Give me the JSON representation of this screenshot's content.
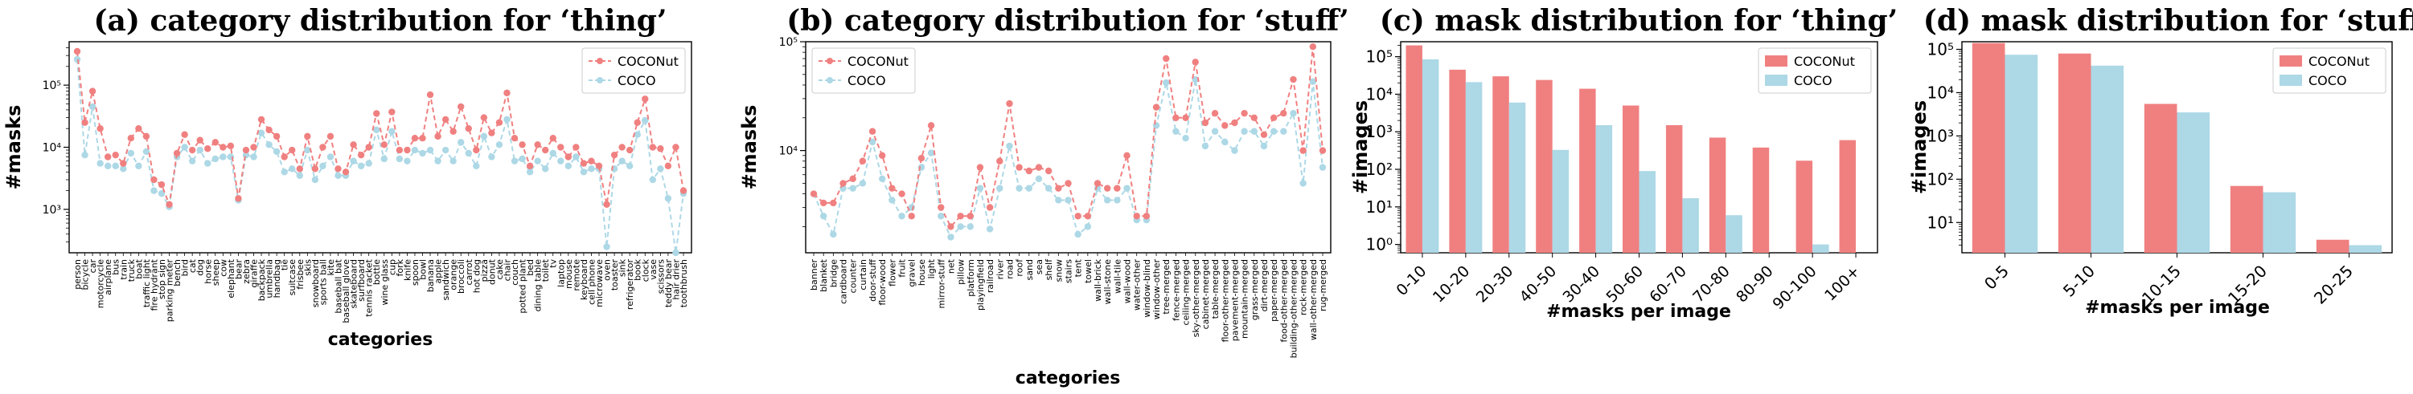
{
  "colors": {
    "coconut": "#f08080",
    "coco": "#add8e6"
  },
  "chart_data": [
    {
      "type": "line",
      "title": "(a) category distribution for ‘thing’",
      "xlabel": "categories",
      "ylabel": "#masks",
      "yscale": "log",
      "ylim": [
        200,
        500000
      ],
      "ytick_labels": [
        "10³",
        "10⁴",
        "10⁵"
      ],
      "ytick_values": [
        1000,
        10000,
        100000
      ],
      "legend_position": "top-right",
      "grid": false,
      "categories": [
        "person",
        "bicycle",
        "car",
        "motorcycle",
        "airplane",
        "bus",
        "train",
        "truck",
        "boat",
        "traffic light",
        "fire hydrant",
        "stop sign",
        "parking meter",
        "bench",
        "bird",
        "cat",
        "dog",
        "horse",
        "sheep",
        "cow",
        "elephant",
        "bear",
        "zebra",
        "giraffe",
        "backpack",
        "umbrella",
        "handbag",
        "tie",
        "suitcase",
        "frisbee",
        "skis",
        "snowboard",
        "sports ball",
        "kite",
        "baseball bat",
        "baseball glove",
        "skateboard",
        "surfboard",
        "tennis racket",
        "bottle",
        "wine glass",
        "cup",
        "fork",
        "knife",
        "spoon",
        "bowl",
        "banana",
        "apple",
        "sandwich",
        "orange",
        "broccoli",
        "carrot",
        "hot dog",
        "pizza",
        "donut",
        "cake",
        "chair",
        "couch",
        "potted plant",
        "bed",
        "dining table",
        "toilet",
        "tv",
        "laptop",
        "mouse",
        "remote",
        "keyboard",
        "cell phone",
        "microwave",
        "oven",
        "toaster",
        "sink",
        "refrigerator",
        "book",
        "clock",
        "vase",
        "scissors",
        "teddy bear",
        "hair drier",
        "toothbrush"
      ],
      "series": [
        {
          "name": "COCONut",
          "values": [
            350000,
            25000,
            80000,
            20000,
            7000,
            7500,
            5500,
            14000,
            20000,
            15000,
            3000,
            2500,
            1200,
            8000,
            16000,
            9000,
            13000,
            9500,
            12000,
            10000,
            10500,
            1500,
            9000,
            10000,
            28000,
            19000,
            15000,
            7000,
            9000,
            4500,
            15000,
            4500,
            10000,
            15000,
            4500,
            4000,
            11000,
            7500,
            10000,
            35000,
            11000,
            37000,
            9000,
            9000,
            14000,
            14000,
            70000,
            15000,
            28000,
            18000,
            45000,
            20000,
            9000,
            30000,
            17000,
            25000,
            75000,
            14000,
            11000,
            5000,
            11000,
            9000,
            14000,
            10000,
            7000,
            10000,
            5500,
            6000,
            5000,
            1200,
            7500,
            10000,
            9000,
            25000,
            60000,
            10000,
            9500,
            5000,
            10000,
            2000
          ]
        },
        {
          "name": "COCO",
          "values": [
            260000,
            7500,
            45000,
            5500,
            5000,
            5000,
            4500,
            8000,
            5000,
            8500,
            2000,
            1800,
            1100,
            7000,
            10000,
            6000,
            9000,
            5500,
            6500,
            7000,
            7000,
            1400,
            7500,
            7000,
            17000,
            11000,
            8500,
            4000,
            4500,
            3500,
            9000,
            3000,
            5000,
            7000,
            3500,
            3500,
            6000,
            5000,
            5500,
            19000,
            6500,
            18000,
            6500,
            6000,
            9000,
            8000,
            9000,
            6000,
            9000,
            6000,
            12000,
            8000,
            5000,
            15000,
            7000,
            11000,
            28000,
            6000,
            6500,
            4000,
            6000,
            4500,
            8000,
            6000,
            5000,
            7000,
            4000,
            4500,
            4500,
            250,
            4500,
            6000,
            5000,
            16000,
            27000,
            3000,
            4500,
            1500,
            200,
            1800
          ]
        }
      ]
    },
    {
      "type": "line",
      "title": "(b) category distribution for ‘stuff’",
      "xlabel": "categories",
      "ylabel": "#masks",
      "yscale": "log",
      "ylim": [
        1150,
        100000
      ],
      "ytick_labels": [
        "10⁴",
        "10⁵"
      ],
      "ytick_values": [
        10000,
        100000
      ],
      "legend_position": "top-left",
      "grid": false,
      "categories": [
        "banner",
        "blanket",
        "bridge",
        "cardboard",
        "counter",
        "curtain",
        "door-stuff",
        "floor-wood",
        "flower",
        "fruit",
        "gravel",
        "house",
        "light",
        "mirror-stuff",
        "net",
        "pillow",
        "platform",
        "playingfield",
        "railroad",
        "river",
        "road",
        "roof",
        "sand",
        "sea",
        "shelf",
        "snow",
        "stairs",
        "tent",
        "towel",
        "wall-brick",
        "wall-stone",
        "wall-tile",
        "wall-wood",
        "water-other",
        "window-blind",
        "window-other",
        "tree-merged",
        "fence-merged",
        "ceiling-merged",
        "sky-other-merged",
        "cabinet-merged",
        "table-merged",
        "floor-other-merged",
        "pavement-merged",
        "mountain-merged",
        "grass-merged",
        "dirt-merged",
        "paper-merged",
        "food-other-merged",
        "building-other-merged",
        "rock-merged",
        "wall-other-merged",
        "rug-merged"
      ],
      "series": [
        {
          "name": "COCONut",
          "values": [
            4000,
            3300,
            3300,
            5000,
            5500,
            8000,
            15000,
            9000,
            4500,
            4000,
            2500,
            8500,
            17000,
            3000,
            2000,
            2500,
            2500,
            7000,
            3000,
            8000,
            27000,
            7000,
            6500,
            7000,
            6500,
            4500,
            5000,
            2500,
            2500,
            5000,
            4500,
            4500,
            9000,
            2500,
            2500,
            25000,
            70000,
            20000,
            20000,
            65000,
            18000,
            22000,
            17000,
            18000,
            22000,
            20000,
            14000,
            20000,
            22000,
            45000,
            10000,
            90000,
            10000
          ]
        },
        {
          "name": "COCO",
          "values": [
            4000,
            2500,
            1700,
            4500,
            4500,
            5000,
            12000,
            5500,
            3500,
            2500,
            3000,
            7000,
            9500,
            2500,
            1600,
            2000,
            2000,
            4500,
            1900,
            4500,
            11000,
            4500,
            4500,
            5500,
            4500,
            3500,
            3500,
            1700,
            2000,
            4500,
            3500,
            3500,
            4500,
            2300,
            2300,
            17000,
            42000,
            15000,
            13000,
            45000,
            11000,
            15000,
            12000,
            10000,
            15000,
            15000,
            11000,
            15000,
            15000,
            22000,
            5000,
            43000,
            7000
          ]
        }
      ]
    },
    {
      "type": "bar",
      "title": "(c) mask distribution for ‘thing’",
      "xlabel": "#masks per image",
      "ylabel": "#images",
      "yscale": "log",
      "ylim": [
        0.6,
        250000
      ],
      "ytick_labels": [
        "10⁰",
        "10¹",
        "10²",
        "10³",
        "10⁴",
        "10⁵"
      ],
      "ytick_values": [
        1,
        10,
        100,
        1000,
        10000,
        100000
      ],
      "legend_position": "top-right",
      "grid": false,
      "categories": [
        "0-10",
        "10-20",
        "20-30",
        "40-50",
        "30-40",
        "50-60",
        "60-70",
        "70-80",
        "80-90",
        "90-100",
        "100+"
      ],
      "series": [
        {
          "name": "COCONut",
          "values": [
            200000,
            45000,
            30000,
            24000,
            14000,
            5000,
            1500,
            700,
            380,
            170,
            600
          ]
        },
        {
          "name": "COCO",
          "values": [
            85000,
            21000,
            6000,
            330,
            1500,
            90,
            17,
            6,
            0,
            1,
            0
          ]
        }
      ]
    },
    {
      "type": "bar",
      "title": "(d) mask distribution for ‘stuff’",
      "xlabel": "#masks per image",
      "ylabel": "#images",
      "yscale": "log",
      "ylim": [
        2,
        150000
      ],
      "ytick_labels": [
        "10¹",
        "10²",
        "10³",
        "10⁴",
        "10⁵"
      ],
      "ytick_values": [
        10,
        100,
        1000,
        10000,
        100000
      ],
      "legend_position": "top-right",
      "grid": false,
      "categories": [
        "0-5",
        "5-10",
        "10-15",
        "15-20",
        "20-25"
      ],
      "series": [
        {
          "name": "COCONut",
          "values": [
            140000,
            80000,
            5500,
            70,
            4
          ]
        },
        {
          "name": "COCO",
          "values": [
            75000,
            42000,
            3500,
            50,
            3
          ]
        }
      ]
    }
  ]
}
